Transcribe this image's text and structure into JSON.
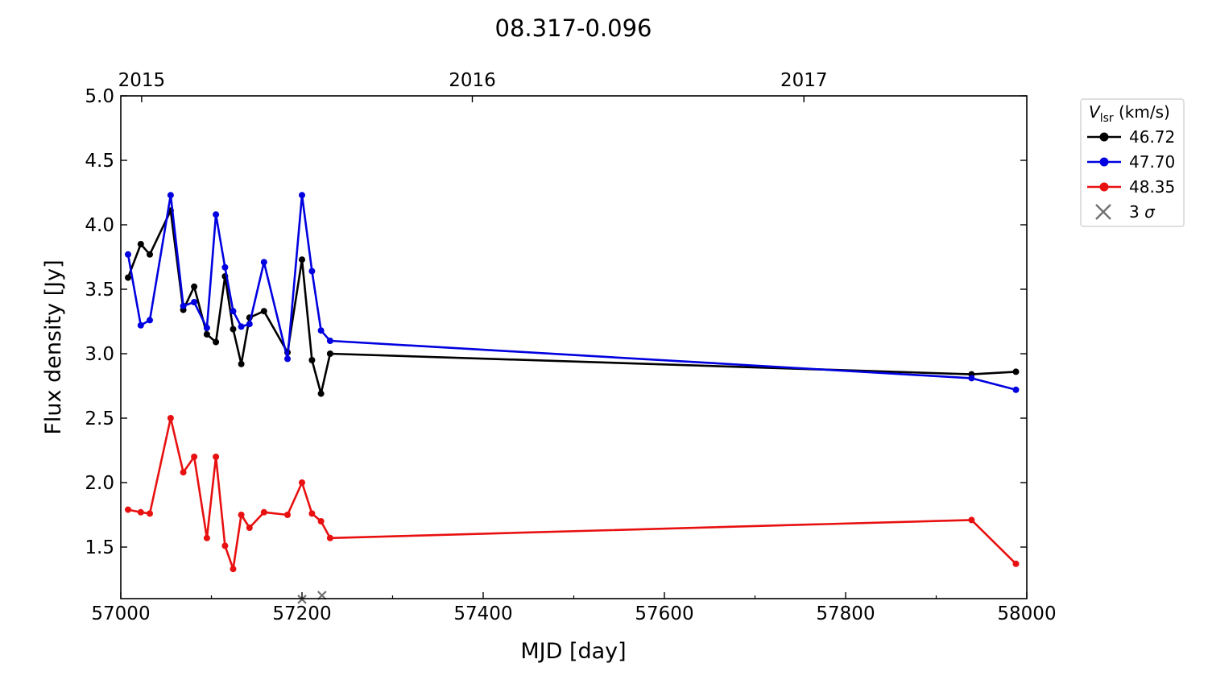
{
  "chart_data": {
    "type": "line",
    "title": "08.317-0.096",
    "xlabel": "MJD [day]",
    "ylabel": "Flux density [Jy]",
    "xlim": [
      57000,
      58000
    ],
    "ylim": [
      1.1,
      5.0
    ],
    "x_ticks": [
      57000,
      57200,
      57400,
      57600,
      57800,
      58000
    ],
    "x_tick_labels": [
      "57000",
      "57200",
      "57400",
      "57600",
      "57800",
      "58000"
    ],
    "y_ticks": [
      1.5,
      2.0,
      2.5,
      3.0,
      3.5,
      4.0,
      4.5,
      5.0
    ],
    "y_tick_labels": [
      "1.5",
      "2.0",
      "2.5",
      "3.0",
      "3.5",
      "4.0",
      "4.5",
      "5.0"
    ],
    "top_axis": {
      "ticks": [
        57023,
        57388,
        57754
      ],
      "tick_labels": [
        "2015",
        "2016",
        "2017"
      ]
    },
    "grid": false,
    "legend": {
      "placement": "outside-right-top",
      "title_main": "V",
      "title_sub": "lsr",
      "title_unit": " (km/s)",
      "sigma_label_prefix": "3 ",
      "sigma_label_symbol": "σ"
    },
    "series": [
      {
        "name": "46.72",
        "color": "#000000",
        "points": [
          [
            57008,
            3.59
          ],
          [
            57022,
            3.85
          ],
          [
            57032,
            3.77
          ],
          [
            57055,
            4.11
          ],
          [
            57069,
            3.34
          ],
          [
            57081,
            3.52
          ],
          [
            57095,
            3.15
          ],
          [
            57105,
            3.09
          ],
          [
            57115,
            3.6
          ],
          [
            57124,
            3.19
          ],
          [
            57133,
            2.92
          ],
          [
            57142,
            3.28
          ],
          [
            57158,
            3.33
          ],
          [
            57184,
            3.01
          ],
          [
            57200,
            3.73
          ],
          [
            57211,
            2.95
          ],
          [
            57221,
            2.69
          ],
          [
            57231,
            3.0
          ],
          [
            57939,
            2.84
          ],
          [
            57988,
            2.86
          ]
        ]
      },
      {
        "name": "47.70",
        "color": "#0000e0",
        "points": [
          [
            57008,
            3.77
          ],
          [
            57022,
            3.22
          ],
          [
            57032,
            3.26
          ],
          [
            57055,
            4.23
          ],
          [
            57069,
            3.37
          ],
          [
            57081,
            3.4
          ],
          [
            57095,
            3.2
          ],
          [
            57105,
            4.08
          ],
          [
            57115,
            3.67
          ],
          [
            57124,
            3.33
          ],
          [
            57133,
            3.21
          ],
          [
            57142,
            3.23
          ],
          [
            57158,
            3.71
          ],
          [
            57184,
            2.96
          ],
          [
            57200,
            4.23
          ],
          [
            57211,
            3.64
          ],
          [
            57221,
            3.18
          ],
          [
            57231,
            3.1
          ],
          [
            57939,
            2.81
          ],
          [
            57988,
            2.72
          ]
        ]
      },
      {
        "name": "48.35",
        "color": "#e81010",
        "points": [
          [
            57008,
            1.79
          ],
          [
            57022,
            1.77
          ],
          [
            57032,
            1.76
          ],
          [
            57055,
            2.5
          ],
          [
            57069,
            2.08
          ],
          [
            57081,
            2.2
          ],
          [
            57095,
            1.57
          ],
          [
            57105,
            2.2
          ],
          [
            57115,
            1.51
          ],
          [
            57124,
            1.33
          ],
          [
            57133,
            1.75
          ],
          [
            57142,
            1.65
          ],
          [
            57158,
            1.77
          ],
          [
            57184,
            1.75
          ],
          [
            57200,
            2.0
          ],
          [
            57211,
            1.76
          ],
          [
            57221,
            1.7
          ],
          [
            57231,
            1.57
          ],
          [
            57939,
            1.71
          ],
          [
            57988,
            1.37
          ]
        ]
      }
    ],
    "sigma_markers": {
      "name": "3 σ",
      "color": "#707070",
      "points": [
        [
          57200,
          1.095
        ],
        [
          57222,
          1.125
        ]
      ]
    }
  }
}
